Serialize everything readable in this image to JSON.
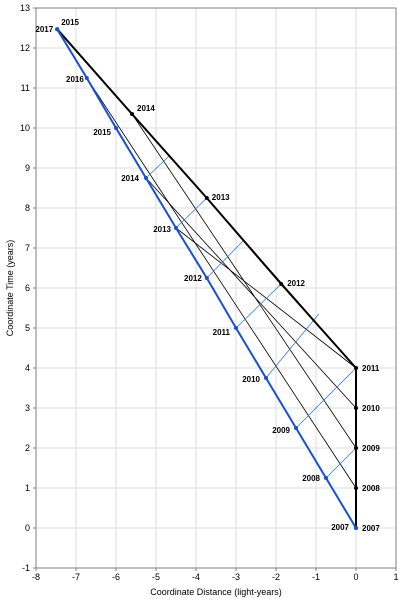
{
  "chart_data": {
    "type": "line",
    "xlabel": "Coordinate Distance (light-years)",
    "ylabel": "Coordinate Time (years)",
    "xlim": [
      -8,
      1
    ],
    "ylim": [
      -1,
      13
    ],
    "xticks": [
      "-8",
      "-7",
      "-6",
      "-5",
      "-4",
      "-3",
      "-2",
      "-1",
      "0",
      "1"
    ],
    "yticks": [
      "-1",
      "0",
      "1",
      "2",
      "3",
      "4",
      "5",
      "6",
      "7",
      "8",
      "9",
      "10",
      "11",
      "12",
      "13"
    ],
    "grid": true,
    "colors": {
      "black": "#000000",
      "blue": "#1a4fd6",
      "grid": "#dcdcdc",
      "link_black": "#000000",
      "link_blue": "#3a7ad8"
    },
    "series": [
      {
        "color": "black",
        "points": [
          {
            "x": 0,
            "y": 0,
            "label": "2007"
          },
          {
            "x": 0,
            "y": 1,
            "label": "2008"
          },
          {
            "x": 0,
            "y": 2,
            "label": "2009"
          },
          {
            "x": 0,
            "y": 3,
            "label": "2010"
          },
          {
            "x": 0,
            "y": 4,
            "label": "2011"
          },
          {
            "x": -1.87,
            "y": 6.1,
            "label": "2012"
          },
          {
            "x": -3.73,
            "y": 8.25,
            "label": "2013"
          },
          {
            "x": -5.6,
            "y": 10.35,
            "label": "2014"
          },
          {
            "x": -7.47,
            "y": 12.47,
            "label": "2015"
          }
        ]
      },
      {
        "color": "blue",
        "points": [
          {
            "x": 0,
            "y": 0,
            "label": "2007"
          },
          {
            "x": -0.75,
            "y": 1.25,
            "label": "2008"
          },
          {
            "x": -1.5,
            "y": 2.5,
            "label": "2009"
          },
          {
            "x": -2.25,
            "y": 3.75,
            "label": "2010"
          },
          {
            "x": -3.0,
            "y": 5.0,
            "label": "2011"
          },
          {
            "x": -3.73,
            "y": 6.25,
            "label": "2012"
          },
          {
            "x": -4.5,
            "y": 7.5,
            "label": "2013"
          },
          {
            "x": -5.25,
            "y": 8.75,
            "label": "2014"
          },
          {
            "x": -6.0,
            "y": 10.0,
            "label": "2015"
          },
          {
            "x": -6.73,
            "y": 11.25,
            "label": "2016"
          },
          {
            "x": -7.47,
            "y": 12.47,
            "label": "2017"
          }
        ]
      }
    ],
    "black_links": [
      [
        [
          0,
          0
        ],
        [
          -7.47,
          12.47
        ]
      ],
      [
        [
          0,
          1
        ],
        [
          -6.73,
          11.25
        ]
      ],
      [
        [
          0,
          2
        ],
        [
          -5.6,
          10.35
        ]
      ],
      [
        [
          0,
          3
        ],
        [
          -5.25,
          8.75
        ]
      ],
      [
        [
          0,
          4
        ],
        [
          -3.73,
          8.25
        ]
      ],
      [
        [
          0,
          4
        ],
        [
          -4.5,
          7.5
        ]
      ]
    ],
    "blue_links": [
      [
        [
          -0.75,
          1.25
        ],
        [
          0,
          2
        ]
      ],
      [
        [
          -1.5,
          2.5
        ],
        [
          0,
          4
        ]
      ],
      [
        [
          -2.25,
          3.75
        ],
        [
          -0.93,
          5.35
        ]
      ],
      [
        [
          -3.0,
          5.0
        ],
        [
          -1.87,
          6.1
        ]
      ],
      [
        [
          -3.73,
          6.25
        ],
        [
          -2.8,
          7.2
        ]
      ],
      [
        [
          -4.5,
          7.5
        ],
        [
          -3.73,
          8.25
        ]
      ],
      [
        [
          -5.25,
          8.75
        ],
        [
          -4.67,
          9.3
        ]
      ]
    ],
    "labels": [
      {
        "text": "2015",
        "x": -7.47,
        "y": 12.47,
        "anchor": "start",
        "dx": 4,
        "dy": -4
      },
      {
        "text": "2017",
        "x": -7.47,
        "y": 12.47,
        "anchor": "end",
        "dx": -4,
        "dy": 3
      },
      {
        "text": "2016",
        "x": -6.73,
        "y": 11.25,
        "anchor": "end",
        "dx": -3,
        "dy": 4
      },
      {
        "text": "2014",
        "x": -5.6,
        "y": 10.35,
        "anchor": "start",
        "dx": 5,
        "dy": -3
      },
      {
        "text": "2015",
        "x": -6.0,
        "y": 10.0,
        "anchor": "end",
        "dx": -5,
        "dy": 7
      },
      {
        "text": "2014",
        "x": -5.25,
        "y": 8.75,
        "anchor": "end",
        "dx": -7,
        "dy": 3
      },
      {
        "text": "2013",
        "x": -3.73,
        "y": 8.25,
        "anchor": "start",
        "dx": 5,
        "dy": 2
      },
      {
        "text": "2013",
        "x": -4.5,
        "y": 7.5,
        "anchor": "end",
        "dx": -5,
        "dy": 4
      },
      {
        "text": "2012",
        "x": -3.73,
        "y": 6.25,
        "anchor": "end",
        "dx": -5,
        "dy": 3
      },
      {
        "text": "2012",
        "x": -1.87,
        "y": 6.1,
        "anchor": "start",
        "dx": 6,
        "dy": 2
      },
      {
        "text": "2011",
        "x": -3.0,
        "y": 5.0,
        "anchor": "end",
        "dx": -6,
        "dy": 7
      },
      {
        "text": "2010",
        "x": -2.25,
        "y": 3.75,
        "anchor": "end",
        "dx": -6,
        "dy": 4
      },
      {
        "text": "2011",
        "x": 0,
        "y": 4,
        "anchor": "start",
        "dx": 6,
        "dy": 3
      },
      {
        "text": "2010",
        "x": 0,
        "y": 3,
        "anchor": "start",
        "dx": 6,
        "dy": 3
      },
      {
        "text": "2009",
        "x": -1.5,
        "y": 2.5,
        "anchor": "end",
        "dx": -6,
        "dy": 5
      },
      {
        "text": "2009",
        "x": 0,
        "y": 2,
        "anchor": "start",
        "dx": 6,
        "dy": 3
      },
      {
        "text": "2008",
        "x": -0.75,
        "y": 1.25,
        "anchor": "end",
        "dx": -6,
        "dy": 3
      },
      {
        "text": "2008",
        "x": 0,
        "y": 1,
        "anchor": "start",
        "dx": 6,
        "dy": 3
      },
      {
        "text": "2007",
        "x": 0,
        "y": 0,
        "anchor": "end",
        "dx": -7,
        "dy": 2
      },
      {
        "text": "2007",
        "x": 0,
        "y": 0,
        "anchor": "start",
        "dx": 6,
        "dy": 3
      }
    ]
  }
}
